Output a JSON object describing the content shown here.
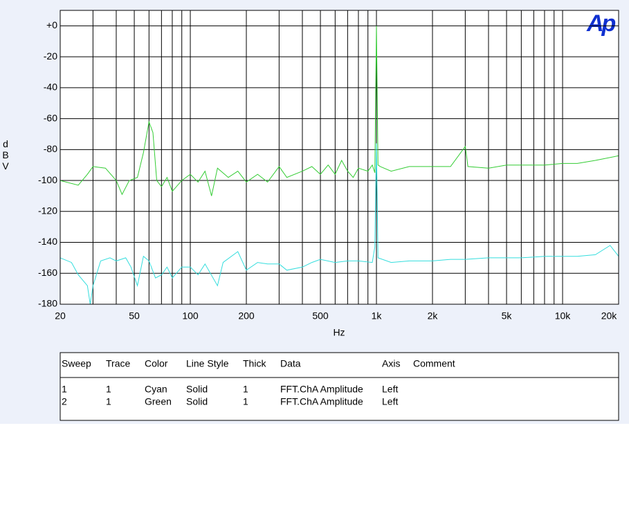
{
  "chart_data": {
    "type": "line",
    "logo": "Ap",
    "xlabel": "Hz",
    "ylabel": "dBV",
    "xlim": [
      20,
      20000
    ],
    "ylim": [
      -180,
      10
    ],
    "xscale": "log",
    "grid": true,
    "xticks": [
      20,
      50,
      100,
      200,
      500,
      {
        "value": 1000,
        "label": "1k"
      },
      {
        "value": 2000,
        "label": "2k"
      },
      {
        "value": 5000,
        "label": "5k"
      },
      {
        "value": 10000,
        "label": "10k"
      },
      {
        "value": 20000,
        "label": "20k"
      }
    ],
    "xminor": [
      30,
      40,
      60,
      70,
      80,
      90,
      300,
      400,
      600,
      700,
      800,
      900,
      3000,
      4000,
      6000,
      7000,
      8000,
      9000
    ],
    "yticks": [
      {
        "value": 0,
        "label": "+0"
      },
      -20,
      -40,
      -60,
      -80,
      -100,
      -120,
      -140,
      -160,
      -180
    ],
    "series": [
      {
        "color": "#33dddd",
        "x": [
          20,
          23,
          25,
          28,
          29,
          30,
          33,
          37,
          40,
          45,
          48,
          52,
          56,
          60,
          65,
          70,
          75,
          80,
          90,
          100,
          110,
          120,
          140,
          150,
          180,
          200,
          230,
          260,
          300,
          330,
          400,
          450,
          500,
          600,
          700,
          800,
          950,
          980,
          1000,
          1020,
          1200,
          1500,
          2000,
          2500,
          3000,
          4000,
          5000,
          6000,
          8000,
          10000,
          12000,
          15000,
          18000,
          20000
        ],
        "values": [
          -150,
          -153,
          -161,
          -168,
          -180,
          -168,
          -152,
          -150,
          -152,
          -150,
          -156,
          -168,
          -149,
          -152,
          -163,
          -161,
          -156,
          -163,
          -156,
          -156,
          -161,
          -154,
          -168,
          -153,
          -146,
          -158,
          -153,
          -154,
          -154,
          -158,
          -156,
          -153,
          -151,
          -153,
          -152,
          -152,
          -153,
          -143,
          -76,
          -150,
          -153,
          -152,
          -152,
          -151,
          -151,
          -150,
          -150,
          -150,
          -149,
          -149,
          -149,
          -148,
          -142,
          -149
        ]
      },
      {
        "color": "#33cc33",
        "x": [
          20,
          25,
          28,
          30,
          35,
          40,
          43,
          47,
          52,
          56,
          60,
          63,
          66,
          70,
          75,
          80,
          90,
          100,
          110,
          120,
          130,
          140,
          160,
          180,
          200,
          230,
          260,
          300,
          330,
          400,
          450,
          500,
          550,
          600,
          650,
          700,
          750,
          800,
          900,
          950,
          980,
          1000,
          1020,
          1050,
          1200,
          1500,
          2000,
          2500,
          3000,
          3100,
          4000,
          5000,
          6000,
          8000,
          10000,
          12000,
          15000,
          20000
        ],
        "values": [
          -100,
          -103,
          -96,
          -91,
          -92,
          -100,
          -109,
          -100,
          -98,
          -82,
          -62,
          -69,
          -100,
          -104,
          -98,
          -107,
          -100,
          -96,
          -101,
          -94,
          -110,
          -92,
          -98,
          -94,
          -101,
          -96,
          -101,
          -91,
          -98,
          -94,
          -91,
          -96,
          -90,
          -96,
          -87,
          -94,
          -98,
          -92,
          -94,
          -90,
          -95,
          0,
          -90,
          -91,
          -94,
          -91,
          -91,
          -91,
          -78,
          -91,
          -92,
          -90,
          -90,
          -90,
          -89,
          -89,
          -87,
          -84
        ]
      }
    ]
  },
  "table": {
    "columns": [
      "Sweep",
      "Trace",
      "Color",
      "Line Style",
      "Thick",
      "Data",
      "Axis",
      "Comment"
    ],
    "rows": [
      [
        "1",
        "1",
        "Cyan",
        "Solid",
        "1",
        "FFT.ChA Amplitude",
        "Left"
      ],
      [
        "2",
        "1",
        "Green",
        "Solid",
        "1",
        "FFT.ChA Amplitude",
        "Left"
      ]
    ]
  }
}
